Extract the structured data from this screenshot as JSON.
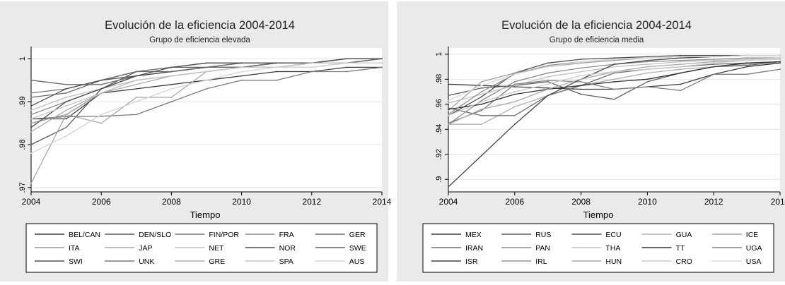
{
  "chart_data": [
    {
      "type": "line",
      "title": "Evolución de la eficiencia 2004-2014",
      "subtitle": "Grupo de eficiencia elevada",
      "xlabel": "Tiempo",
      "ylabel": "",
      "xlim": [
        2004,
        2014
      ],
      "ylim": [
        0.969,
        1.0025
      ],
      "xticks": [
        "2004",
        "2006",
        "2008",
        "2010",
        "2012",
        "2014"
      ],
      "yticks": [
        {
          "v": 0.97,
          "label": ".97"
        },
        {
          "v": 0.98,
          "label": ".98"
        },
        {
          "v": 0.99,
          "label": ".99"
        },
        {
          "v": 1.0,
          "label": "1"
        }
      ],
      "x": [
        2004,
        2005,
        2006,
        2007,
        2008,
        2009,
        2010,
        2011,
        2012,
        2013,
        2014
      ],
      "grid": true,
      "legend_position": "bottom",
      "legend_cols": 5,
      "series": [
        {
          "name": "BEL/CAN",
          "color": "#3a3a3a",
          "values": [
            0.986,
            0.986,
            0.992,
            0.993,
            0.994,
            0.995,
            0.996,
            0.997,
            0.997,
            0.998,
            0.998
          ]
        },
        {
          "name": "DEN/SLO",
          "color": "#5a5a5a",
          "values": [
            0.98,
            0.984,
            0.993,
            0.997,
            0.998,
            0.998,
            0.998,
            0.999,
            0.999,
            0.999,
            1.0
          ]
        },
        {
          "name": "FIN/POR",
          "color": "#777777",
          "values": [
            0.992,
            0.993,
            0.995,
            0.997,
            0.998,
            0.999,
            0.999,
            0.999,
            0.999,
            1.0,
            1.0
          ]
        },
        {
          "name": "FRA",
          "color": "#8e8e8e",
          "values": [
            0.987,
            0.99,
            0.993,
            0.996,
            0.997,
            0.998,
            0.999,
            0.999,
            0.999,
            0.999,
            1.0
          ]
        },
        {
          "name": "GER",
          "color": "#6a6a6a",
          "values": [
            0.995,
            0.994,
            0.994,
            0.996,
            0.997,
            0.998,
            0.999,
            0.999,
            0.999,
            0.999,
            1.0
          ]
        },
        {
          "name": "ITA",
          "color": "#9a9a9a",
          "values": [
            0.985,
            0.987,
            0.992,
            0.995,
            0.996,
            0.997,
            0.998,
            0.998,
            0.999,
            0.999,
            0.999
          ]
        },
        {
          "name": "JAP",
          "color": "#a8a8a8",
          "values": [
            0.971,
            0.987,
            0.985,
            0.991,
            0.991,
            0.997,
            0.998,
            0.998,
            0.998,
            0.999,
            0.999
          ]
        },
        {
          "name": "NET",
          "color": "#bdbdbd",
          "values": [
            0.988,
            0.991,
            0.993,
            0.995,
            0.996,
            0.997,
            0.998,
            0.998,
            0.999,
            0.999,
            0.999
          ]
        },
        {
          "name": "NOR",
          "color": "#4a4a4a",
          "values": [
            0.984,
            0.99,
            0.993,
            0.996,
            0.997,
            0.998,
            0.998,
            0.999,
            0.999,
            1.0,
            1.0
          ]
        },
        {
          "name": "SWE",
          "color": "#666666",
          "values": [
            0.991,
            0.992,
            0.995,
            0.997,
            0.997,
            0.998,
            0.998,
            0.999,
            0.999,
            0.999,
            1.0
          ]
        },
        {
          "name": "SWI",
          "color": "#505050",
          "values": [
            0.989,
            0.993,
            0.995,
            0.996,
            0.998,
            0.999,
            0.999,
            0.999,
            0.999,
            1.0,
            1.0
          ]
        },
        {
          "name": "UNK",
          "color": "#7a7a7a",
          "values": [
            0.986,
            0.9865,
            0.9866,
            0.987,
            0.99,
            0.993,
            0.995,
            0.995,
            0.997,
            0.997,
            0.998
          ]
        },
        {
          "name": "GRE",
          "color": "#aaaaaa",
          "values": [
            0.983,
            0.988,
            0.992,
            0.994,
            0.996,
            0.997,
            0.998,
            0.998,
            0.999,
            0.999,
            0.999
          ]
        },
        {
          "name": "SPA",
          "color": "#c4c4c4",
          "values": [
            0.986,
            0.989,
            0.992,
            0.995,
            0.996,
            0.997,
            0.998,
            0.998,
            0.999,
            0.999,
            0.999
          ]
        },
        {
          "name": "AUS",
          "color": "#d4d4d4",
          "values": [
            0.978,
            0.982,
            0.987,
            0.99,
            0.993,
            0.995,
            0.997,
            0.998,
            0.998,
            0.999,
            0.999
          ]
        }
      ]
    },
    {
      "type": "line",
      "title": "Evolución de la eficiencia 2004-2014",
      "subtitle": "Grupo de eficiencia media",
      "xlabel": "Tiempo",
      "ylabel": "",
      "xlim": [
        2004,
        2014
      ],
      "ylim": [
        0.89,
        1.005
      ],
      "xticks": [
        "2004",
        "2006",
        "2008",
        "2010",
        "2012",
        "2014"
      ],
      "yticks": [
        {
          "v": 0.9,
          "label": ".9"
        },
        {
          "v": 0.92,
          "label": ".92"
        },
        {
          "v": 0.94,
          "label": ".94"
        },
        {
          "v": 0.96,
          "label": ".96"
        },
        {
          "v": 0.98,
          "label": ".98"
        },
        {
          "v": 1.0,
          "label": "1"
        }
      ],
      "x": [
        2004,
        2005,
        2006,
        2007,
        2008,
        2009,
        2010,
        2011,
        2012,
        2013,
        2014
      ],
      "grid": true,
      "legend_position": "bottom",
      "legend_cols": 5,
      "series": [
        {
          "name": "MEX",
          "color": "#3a3a3a",
          "values": [
            0.976,
            0.975,
            0.974,
            0.973,
            0.972,
            0.972,
            0.974,
            0.976,
            0.984,
            0.99,
            0.993
          ]
        },
        {
          "name": "RUS",
          "color": "#5e5e5e",
          "values": [
            0.967,
            0.973,
            0.975,
            0.978,
            0.968,
            0.964,
            0.978,
            0.985,
            0.99,
            0.991,
            0.994
          ]
        },
        {
          "name": "ECU",
          "color": "#4e4e4e",
          "values": [
            0.951,
            0.966,
            0.985,
            0.993,
            0.996,
            0.997,
            0.998,
            0.999,
            0.999,
            0.999,
            0.999
          ]
        },
        {
          "name": "GUA",
          "color": "#b0b0b0",
          "values": [
            0.944,
            0.944,
            0.958,
            0.967,
            0.975,
            0.98,
            0.985,
            0.988,
            0.99,
            0.992,
            0.994
          ]
        },
        {
          "name": "ICE",
          "color": "#a0a0a0",
          "values": [
            0.955,
            0.978,
            0.985,
            0.99,
            0.993,
            0.995,
            0.997,
            0.998,
            0.998,
            0.999,
            0.999
          ]
        },
        {
          "name": "IRAN",
          "color": "#6e6e6e",
          "values": [
            0.957,
            0.951,
            0.951,
            0.967,
            0.975,
            0.985,
            0.988,
            0.99,
            0.992,
            0.993,
            0.994
          ]
        },
        {
          "name": "PAN",
          "color": "#8a8a8a",
          "values": [
            0.944,
            0.963,
            0.978,
            0.985,
            0.989,
            0.992,
            0.994,
            0.995,
            0.996,
            0.997,
            0.997
          ]
        },
        {
          "name": "THA",
          "color": "#c0c0c0",
          "values": [
            0.961,
            0.968,
            0.975,
            0.982,
            0.986,
            0.99,
            0.992,
            0.994,
            0.995,
            0.996,
            0.997
          ]
        },
        {
          "name": "TT",
          "color": "#2e2e2e",
          "values": [
            0.956,
            0.96,
            0.968,
            0.972,
            0.975,
            0.978,
            0.98,
            0.985,
            0.99,
            0.993,
            0.994
          ]
        },
        {
          "name": "UGA",
          "color": "#7e7e7e",
          "values": [
            0.945,
            0.955,
            0.976,
            0.979,
            0.978,
            0.972,
            0.974,
            0.971,
            0.984,
            0.984,
            0.988
          ]
        },
        {
          "name": "ISR",
          "color": "#444444",
          "values": [
            0.894,
            0.919,
            0.944,
            0.967,
            0.98,
            0.992,
            0.995,
            0.997,
            0.998,
            0.999,
            0.999
          ]
        },
        {
          "name": "IRL",
          "color": "#909090",
          "values": [
            0.952,
            0.97,
            0.984,
            0.991,
            0.994,
            0.996,
            0.997,
            0.998,
            0.998,
            0.999,
            0.999
          ]
        },
        {
          "name": "HUN",
          "color": "#a6a6a6",
          "values": [
            0.944,
            0.956,
            0.962,
            0.972,
            0.98,
            0.986,
            0.99,
            0.992,
            0.994,
            0.995,
            0.996
          ]
        },
        {
          "name": "CRO",
          "color": "#cacaca",
          "values": [
            0.951,
            0.962,
            0.97,
            0.976,
            0.983,
            0.986,
            0.988,
            0.99,
            0.993,
            0.995,
            0.996
          ]
        },
        {
          "name": "USA",
          "color": "#d8d8d8",
          "values": [
            0.963,
            0.975,
            0.984,
            0.99,
            0.994,
            0.996,
            0.997,
            0.998,
            0.998,
            0.999,
            0.999
          ]
        }
      ]
    }
  ]
}
